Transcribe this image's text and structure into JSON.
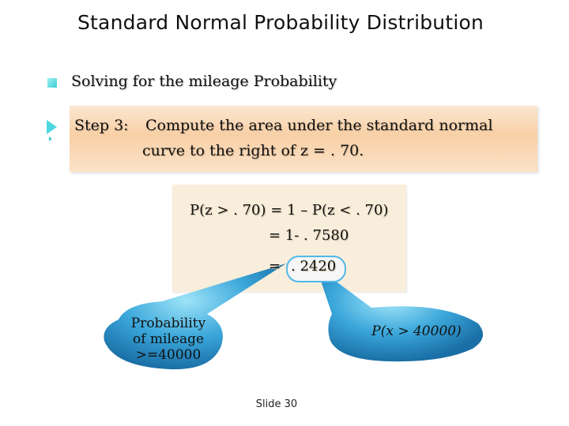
{
  "slide": {
    "title": "Standard Normal Probability Distribution",
    "bullet": "Solving for the mileage Probability",
    "step": {
      "label": "Step 3:",
      "line1": "Compute the area under the standard normal",
      "line2": "curve to the right of z = . 70."
    },
    "calc": {
      "line1": "P(z > . 70) = 1 – P(z < . 70)",
      "line2": "= 1- . 7580",
      "line3_prefix": "=",
      "line3_value": ". 2420"
    },
    "callouts": {
      "left": [
        "Probability",
        "of mileage",
        ">=40000"
      ],
      "right": "P(x > 40000)"
    },
    "footer": "Slide 30"
  },
  "colors": {
    "accent_cyan": "#4fd8e0",
    "callout_blue": "#2a8fc4",
    "step_box": "#f8d0a6",
    "calc_box": "#f8eedb"
  },
  "icons": {
    "bullet": "square-bullet-icon",
    "step_marker": "triangle-pointer-icon"
  }
}
